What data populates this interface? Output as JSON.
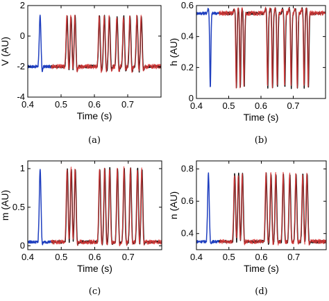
{
  "chart_data": [
    {
      "type": "line",
      "caption": "(a)",
      "xlabel": "Time (s)",
      "ylabel": "V (AU)",
      "xlim": [
        0.4,
        0.8
      ],
      "ylim": [
        -4,
        2
      ],
      "xticks": [
        "0.4",
        "0.5",
        "0.6",
        "0.7"
      ],
      "yticks": [
        "-4",
        "-2",
        "0",
        "2"
      ],
      "baseline": -2,
      "peak": 1.3,
      "trough": -2.4,
      "spike_times": [
        0.437,
        0.518,
        0.53,
        0.542,
        0.615,
        0.63,
        0.645,
        0.668,
        0.688,
        0.707,
        0.728,
        0.741
      ],
      "series": [
        {
          "color": "#1f3fbf",
          "x_range": [
            0.4,
            0.47
          ]
        },
        {
          "color": "#111111",
          "x_range": [
            0.47,
            0.8
          ]
        },
        {
          "color": "#e03a3a",
          "x_range": [
            0.47,
            0.8
          ]
        }
      ]
    },
    {
      "type": "line",
      "caption": "(b)",
      "xlabel": "Time (s)",
      "ylabel": "h (AU)",
      "xlim": [
        0.4,
        0.8
      ],
      "ylim": [
        0,
        0.6
      ],
      "xticks": [
        "0.4",
        "0.5",
        "0.6",
        "0.7"
      ],
      "yticks": [
        "0",
        "0.2",
        "0.4",
        "0.6"
      ],
      "baseline": 0.55,
      "peak": 0.58,
      "trough": 0.07,
      "spike_times": [
        0.437,
        0.518,
        0.53,
        0.542,
        0.615,
        0.63,
        0.645,
        0.668,
        0.688,
        0.707,
        0.728,
        0.741
      ],
      "series": [
        {
          "color": "#1f3fbf",
          "x_range": [
            0.4,
            0.47
          ]
        },
        {
          "color": "#111111",
          "x_range": [
            0.47,
            0.8
          ]
        },
        {
          "color": "#e03a3a",
          "x_range": [
            0.47,
            0.8
          ]
        }
      ]
    },
    {
      "type": "line",
      "caption": "(c)",
      "xlabel": "Time (s)",
      "ylabel": "m (AU)",
      "xlim": [
        0.4,
        0.8
      ],
      "ylim": [
        -0.05,
        1.1
      ],
      "xticks": [
        "0.4",
        "0.5",
        "0.6",
        "0.7"
      ],
      "yticks": [
        "0",
        "0.5",
        "1"
      ],
      "baseline": 0.05,
      "peak": 1.0,
      "trough": 0.0,
      "spike_times": [
        0.437,
        0.518,
        0.53,
        0.542,
        0.615,
        0.63,
        0.645,
        0.668,
        0.688,
        0.707,
        0.728,
        0.741
      ],
      "series": [
        {
          "color": "#1f3fbf",
          "x_range": [
            0.4,
            0.47
          ]
        },
        {
          "color": "#111111",
          "x_range": [
            0.47,
            0.8
          ]
        },
        {
          "color": "#e03a3a",
          "x_range": [
            0.47,
            0.8
          ]
        }
      ]
    },
    {
      "type": "line",
      "caption": "(d)",
      "xlabel": "Time (s)",
      "ylabel": "n (AU)",
      "xlim": [
        0.4,
        0.8
      ],
      "ylim": [
        0.3,
        0.85
      ],
      "xticks": [
        "0.4",
        "0.5",
        "0.6",
        "0.7"
      ],
      "yticks": [
        "0.4",
        "0.6",
        "0.8"
      ],
      "baseline": 0.35,
      "peak": 0.77,
      "trough": 0.33,
      "spike_times": [
        0.437,
        0.518,
        0.53,
        0.542,
        0.615,
        0.63,
        0.645,
        0.668,
        0.688,
        0.707,
        0.728,
        0.741
      ],
      "series": [
        {
          "color": "#1f3fbf",
          "x_range": [
            0.4,
            0.47
          ]
        },
        {
          "color": "#111111",
          "x_range": [
            0.47,
            0.8
          ]
        },
        {
          "color": "#e03a3a",
          "x_range": [
            0.47,
            0.8
          ]
        }
      ]
    }
  ]
}
